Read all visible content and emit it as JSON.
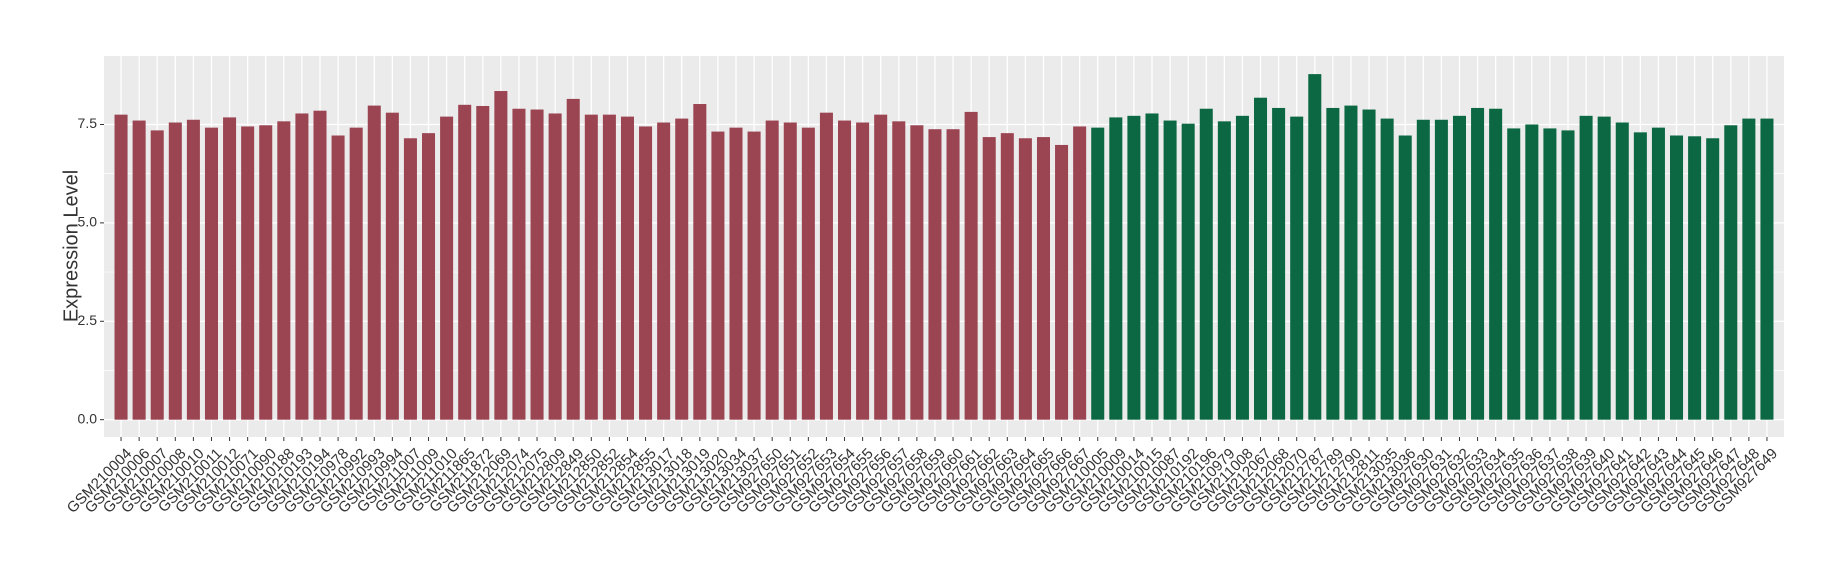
{
  "chart_data": {
    "type": "bar",
    "y_label": "Expression Level",
    "categories": [
      "GSM210004",
      "GSM210006",
      "GSM210007",
      "GSM210008",
      "GSM210010",
      "GSM210011",
      "GSM210012",
      "GSM210071",
      "GSM210090",
      "GSM210188",
      "GSM210193",
      "GSM210194",
      "GSM210978",
      "GSM210992",
      "GSM210993",
      "GSM210994",
      "GSM211007",
      "GSM211009",
      "GSM211010",
      "GSM211865",
      "GSM211872",
      "GSM212069",
      "GSM212074",
      "GSM212075",
      "GSM212809",
      "GSM212849",
      "GSM212850",
      "GSM212852",
      "GSM212854",
      "GSM212855",
      "GSM213017",
      "GSM213018",
      "GSM213019",
      "GSM213020",
      "GSM213034",
      "GSM213037",
      "GSM927650",
      "GSM927651",
      "GSM927652",
      "GSM927653",
      "GSM927654",
      "GSM927655",
      "GSM927656",
      "GSM927657",
      "GSM927658",
      "GSM927659",
      "GSM927660",
      "GSM927661",
      "GSM927662",
      "GSM927663",
      "GSM927664",
      "GSM927665",
      "GSM927666",
      "GSM927667",
      "GSM210005",
      "GSM210009",
      "GSM210014",
      "GSM210015",
      "GSM210087",
      "GSM210192",
      "GSM210196",
      "GSM210979",
      "GSM211008",
      "GSM212067",
      "GSM212068",
      "GSM212070",
      "GSM212787",
      "GSM212789",
      "GSM212790",
      "GSM212811",
      "GSM213035",
      "GSM213036",
      "GSM927630",
      "GSM927631",
      "GSM927632",
      "GSM927633",
      "GSM927634",
      "GSM927635",
      "GSM927636",
      "GSM927637",
      "GSM927638",
      "GSM927639",
      "GSM927640",
      "GSM927641",
      "GSM927642",
      "GSM927643",
      "GSM927644",
      "GSM927645",
      "GSM927646",
      "GSM927647",
      "GSM927648",
      "GSM927649"
    ],
    "series": [
      {
        "color": "#9b4452",
        "values": [
          7.75,
          7.6,
          7.35,
          7.55,
          7.62,
          7.42,
          7.68,
          7.45,
          7.48,
          7.58,
          7.78,
          7.85,
          7.22,
          7.42,
          7.98,
          7.8,
          7.15,
          7.28,
          7.7,
          8.0,
          7.97,
          8.35,
          7.9,
          7.88,
          7.78,
          8.15,
          7.75,
          7.75,
          7.7,
          7.45,
          7.55,
          7.65,
          8.02,
          7.32,
          7.42,
          7.32,
          7.6,
          7.55,
          7.42,
          7.8,
          7.6,
          7.55,
          7.75,
          7.58,
          7.48,
          7.38,
          7.38,
          7.82,
          7.18,
          7.28,
          7.15,
          7.18,
          6.98,
          7.45,
          null,
          null,
          null,
          null,
          null,
          null,
          null,
          null,
          null,
          null,
          null,
          null,
          null,
          null,
          null,
          null,
          null,
          null,
          null,
          null,
          null,
          null,
          null,
          null,
          null,
          null,
          null,
          null,
          null,
          null,
          null,
          null,
          null,
          null,
          null,
          null,
          null,
          null
        ]
      },
      {
        "color": "#0b6843",
        "values": [
          null,
          null,
          null,
          null,
          null,
          null,
          null,
          null,
          null,
          null,
          null,
          null,
          null,
          null,
          null,
          null,
          null,
          null,
          null,
          null,
          null,
          null,
          null,
          null,
          null,
          null,
          null,
          null,
          null,
          null,
          null,
          null,
          null,
          null,
          null,
          null,
          null,
          null,
          null,
          null,
          null,
          null,
          null,
          null,
          null,
          null,
          null,
          null,
          null,
          null,
          null,
          null,
          null,
          null,
          7.42,
          7.68,
          7.72,
          7.78,
          7.6,
          7.52,
          7.9,
          7.58,
          7.72,
          8.18,
          7.92,
          7.7,
          8.78,
          7.92,
          7.98,
          7.88,
          7.65,
          7.22,
          7.62,
          7.62,
          7.72,
          7.92,
          7.9,
          7.4,
          7.5,
          7.4,
          7.35,
          7.72,
          7.7,
          7.55,
          7.3,
          7.42,
          7.22,
          7.2,
          7.15,
          7.48,
          7.65,
          7.65
        ]
      }
    ],
    "ylim": [
      -0.44,
      9.24
    ],
    "yticks": [
      {
        "value": 0,
        "label": "0.0"
      },
      {
        "value": 2.5,
        "label": "2.5"
      },
      {
        "value": 5,
        "label": "5.0"
      },
      {
        "value": 7.5,
        "label": "7.5"
      }
    ],
    "grid": true
  }
}
